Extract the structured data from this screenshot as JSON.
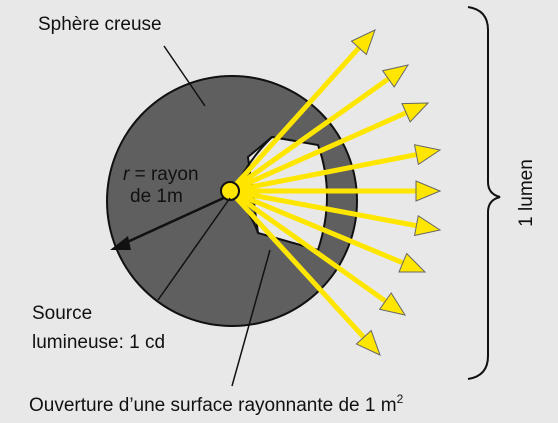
{
  "title": "Sphère creuse",
  "radius_label_var": "r",
  "radius_label_eq": " = rayon",
  "radius_label_line2": "de 1m",
  "source_label_line1": "Source",
  "source_label_line2": "lumineuse: 1 cd",
  "opening_label": "Ouverture d’une surface rayonnante de 1 m",
  "opening_label_sup": "2",
  "flux_label": "1 lumen",
  "colors": {
    "background": "#e8e8e8",
    "sphere": "#5f5f5f",
    "ray": "#ffe600",
    "source": "#ffe600"
  }
}
